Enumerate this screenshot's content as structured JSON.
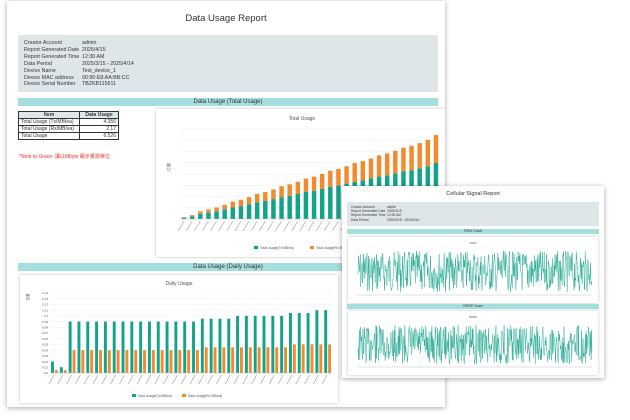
{
  "report": {
    "title": "Data Usage Report",
    "info": [
      {
        "label": "Creator Account",
        "value": "admin"
      },
      {
        "label": "Report Generated Date",
        "value": "2025/4/15"
      },
      {
        "label": "Report Generated Time",
        "value": "12:30 AM"
      },
      {
        "label": "Data Period",
        "value": "2025/3/15 - 2025/4/14"
      },
      {
        "label": "Device Name",
        "value": "Test_device_1"
      },
      {
        "label": "Device MAC address",
        "value": "00:90:E8:AA:BB:CC"
      },
      {
        "label": "Device Serial Number",
        "value": "TBZKB115611"
      }
    ],
    "total_section": "Data Usage (Total Usage)",
    "daily_section": "Data Usage (Daily Usage)",
    "summary": {
      "headers": [
        "Item",
        "Data Usage"
      ],
      "rows": [
        [
          "Total Usage (Tx/MB/ea)",
          "4.356"
        ],
        [
          "Total Usage (Rx/MB/ea)",
          "2.17"
        ],
        [
          "Total Usage",
          "6.526"
        ]
      ]
    },
    "note": "*Note to Grace: 讀以Mbyte 顯示量測單位"
  },
  "colors": {
    "tx": "#13a38a",
    "rx": "#f08c2f",
    "section": "#a4dedd",
    "infobox": "#dfe6ea"
  },
  "chart_data": [
    {
      "type": "bar",
      "title": "Total Usage",
      "ylabel": "位量",
      "stacked": true,
      "series": [
        {
          "name": "Total Usage(Tx/MB/ea)",
          "values": [
            0.1,
            0.2,
            0.4,
            0.5,
            0.6,
            0.75,
            0.9,
            1.0,
            1.15,
            1.3,
            1.4,
            1.55,
            1.7,
            1.8,
            1.95,
            2.1,
            2.2,
            2.35,
            2.5,
            2.6,
            2.75,
            2.9,
            3.0,
            3.15,
            3.3,
            3.4,
            3.55,
            3.7,
            3.8,
            3.95,
            4.1,
            4.356
          ]
        },
        {
          "name": "Total Usage(Rx MB/ea)",
          "values": [
            0.05,
            0.1,
            0.2,
            0.25,
            0.3,
            0.35,
            0.45,
            0.5,
            0.55,
            0.65,
            0.7,
            0.75,
            0.85,
            0.9,
            0.95,
            1.05,
            1.1,
            1.15,
            1.25,
            1.3,
            1.35,
            1.45,
            1.5,
            1.55,
            1.65,
            1.7,
            1.75,
            1.85,
            1.9,
            1.95,
            2.05,
            2.17
          ]
        }
      ]
    },
    {
      "type": "bar",
      "title": "Daily Usage",
      "ylabel": "位量",
      "yticks": [
        "0.0",
        "0.01",
        "0.02",
        "0.03",
        "0.04",
        "0.05",
        "0.06",
        "0.07",
        "0.08",
        "0.09",
        "0.1",
        "0.11",
        "0.12",
        "0.13",
        "0.14"
      ],
      "series": [
        {
          "name": "Data Usage(Tx/MB/ea)",
          "values": [
            0.02,
            0.01,
            0.09,
            0.09,
            0.09,
            0.09,
            0.09,
            0.09,
            0.09,
            0.09,
            0.09,
            0.09,
            0.09,
            0.09,
            0.09,
            0.09,
            0.09,
            0.095,
            0.095,
            0.095,
            0.095,
            0.1,
            0.1,
            0.1,
            0.1,
            0.1,
            0.1,
            0.105,
            0.105,
            0.105,
            0.11,
            0.11
          ]
        },
        {
          "name": "Data Usage(Rx MB/ea)",
          "values": [
            0.005,
            0.005,
            0.04,
            0.04,
            0.04,
            0.04,
            0.04,
            0.04,
            0.04,
            0.04,
            0.04,
            0.04,
            0.04,
            0.04,
            0.04,
            0.04,
            0.04,
            0.045,
            0.045,
            0.045,
            0.045,
            0.045,
            0.045,
            0.045,
            0.045,
            0.045,
            0.045,
            0.05,
            0.05,
            0.05,
            0.05,
            0.05
          ]
        }
      ]
    },
    {
      "type": "line",
      "title": "RSSI",
      "section": "RSSI Chart",
      "seed": 7
    },
    {
      "type": "line",
      "title": "RSRP",
      "section": "RSRP Chart",
      "seed": 13
    }
  ],
  "cellular": {
    "title": "Cellular Signal Report",
    "info": [
      {
        "label": "Creator Account",
        "value": "admin"
      },
      {
        "label": "Report Generated Date",
        "value": "2025/4/15"
      },
      {
        "label": "Report Generated Time",
        "value": "12:30 AM"
      },
      {
        "label": "Data Period",
        "value": "2025/3/15 - 2025/4/14"
      }
    ],
    "rssi_section": "RSSI Chart",
    "rsrp_section": "RSRP Chart"
  }
}
